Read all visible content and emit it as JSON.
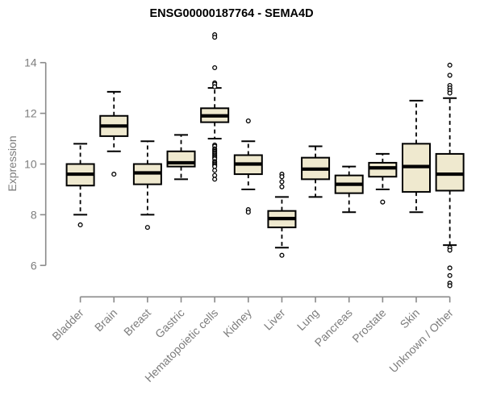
{
  "colors": {
    "box_fill": "#EFE9CF",
    "box_border": "#000000",
    "median": "#000000",
    "whisker": "#000000",
    "outlier_stroke": "#000000",
    "axis": "#8A8A8A",
    "tick_text": "#7D7D7D",
    "title_text": "#000000",
    "background": "#FFFFFF"
  },
  "chart_data": {
    "type": "boxplot",
    "title": "ENSG00000187764 - SEMA4D",
    "ylabel": "Expression",
    "xlabel": "",
    "yticks": [
      6,
      8,
      10,
      12,
      14
    ],
    "ylim": [
      5.0,
      15.4
    ],
    "grid": false,
    "legend": "none",
    "categories": [
      "Bladder",
      "Brain",
      "Breast",
      "Gastric",
      "Hematopoietic cells",
      "Kidney",
      "Liver",
      "Lung",
      "Pancreas",
      "Prostate",
      "Skin",
      "Unknown / Other"
    ],
    "series": [
      {
        "name": "Bladder",
        "whisker_low": 8.0,
        "q1": 9.15,
        "median": 9.6,
        "q3": 10.0,
        "whisker_high": 10.8,
        "outliers": [
          7.6
        ]
      },
      {
        "name": "Brain",
        "whisker_low": 10.5,
        "q1": 11.1,
        "median": 11.5,
        "q3": 11.9,
        "whisker_high": 12.85,
        "outliers": [
          9.6
        ]
      },
      {
        "name": "Breast",
        "whisker_low": 8.0,
        "q1": 9.2,
        "median": 9.65,
        "q3": 10.0,
        "whisker_high": 10.9,
        "outliers": [
          7.5
        ]
      },
      {
        "name": "Gastric",
        "whisker_low": 9.4,
        "q1": 9.9,
        "median": 10.05,
        "q3": 10.5,
        "whisker_high": 11.15,
        "outliers": []
      },
      {
        "name": "Hematopoietic cells",
        "whisker_low": 11.0,
        "q1": 11.65,
        "median": 11.9,
        "q3": 12.2,
        "whisker_high": 13.0,
        "outliers": [
          15.1,
          15.0,
          13.8,
          13.2,
          13.15,
          13.05,
          10.75,
          10.7,
          10.6,
          10.55,
          10.5,
          10.45,
          10.4,
          10.35,
          10.3,
          10.25,
          10.2,
          10.1,
          10.05,
          10.0,
          9.95,
          9.9,
          9.75,
          9.55,
          9.4
        ]
      },
      {
        "name": "Kidney",
        "whisker_low": 9.0,
        "q1": 9.6,
        "median": 10.0,
        "q3": 10.35,
        "whisker_high": 10.9,
        "outliers": [
          11.7,
          8.2,
          8.1
        ]
      },
      {
        "name": "Liver",
        "whisker_low": 6.7,
        "q1": 7.5,
        "median": 7.85,
        "q3": 8.15,
        "whisker_high": 8.7,
        "outliers": [
          9.6,
          9.5,
          9.3,
          9.1,
          6.4
        ]
      },
      {
        "name": "Lung",
        "whisker_low": 8.7,
        "q1": 9.4,
        "median": 9.8,
        "q3": 10.25,
        "whisker_high": 10.7,
        "outliers": []
      },
      {
        "name": "Pancreas",
        "whisker_low": 8.1,
        "q1": 8.85,
        "median": 9.2,
        "q3": 9.55,
        "whisker_high": 9.9,
        "outliers": []
      },
      {
        "name": "Prostate",
        "whisker_low": 9.0,
        "q1": 9.5,
        "median": 9.85,
        "q3": 10.05,
        "whisker_high": 10.4,
        "outliers": [
          8.5
        ]
      },
      {
        "name": "Skin",
        "whisker_low": 8.1,
        "q1": 8.9,
        "median": 9.9,
        "q3": 10.8,
        "whisker_high": 12.5,
        "outliers": []
      },
      {
        "name": "Unknown / Other",
        "whisker_low": 6.8,
        "q1": 8.95,
        "median": 9.6,
        "q3": 10.4,
        "whisker_high": 12.6,
        "outliers": [
          13.9,
          13.5,
          13.1,
          13.0,
          12.9,
          12.8,
          6.7,
          6.6,
          5.9,
          5.6,
          5.3,
          5.2
        ]
      }
    ]
  }
}
